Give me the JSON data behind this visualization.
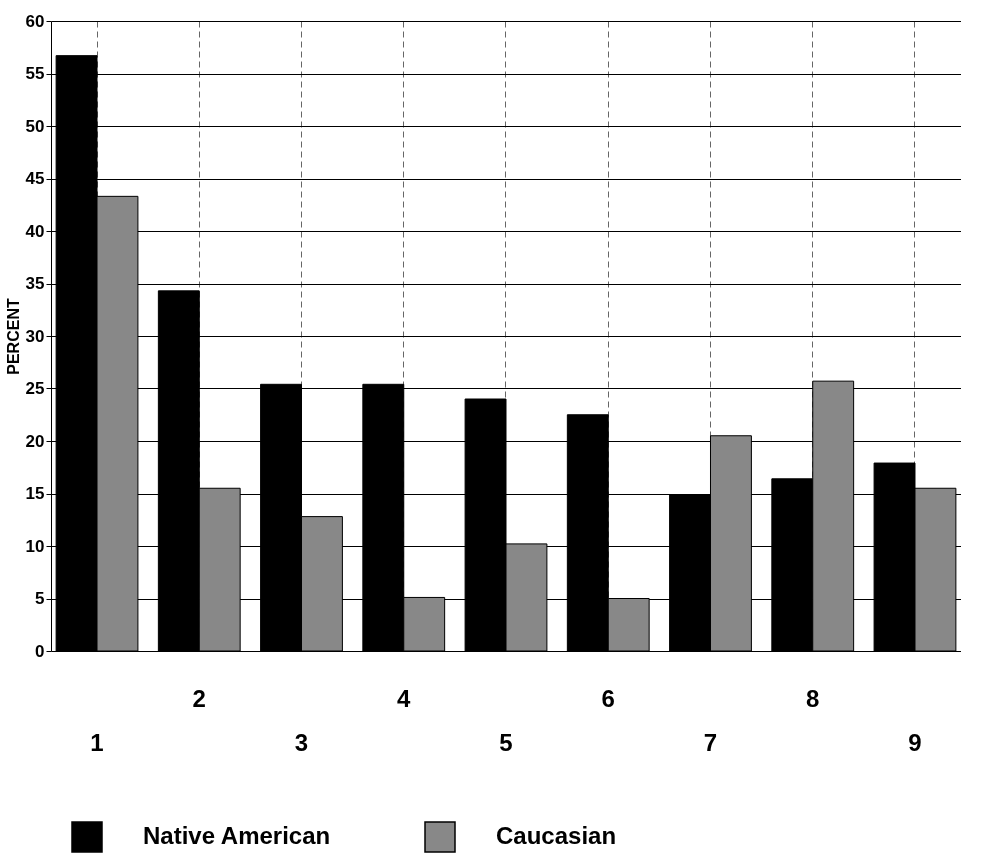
{
  "chart_data": {
    "type": "bar",
    "ylabel": "PERCENT",
    "categories": [
      "1",
      "2",
      "3",
      "4",
      "5",
      "6",
      "7",
      "8",
      "9"
    ],
    "series": [
      {
        "name": "Native American",
        "color": "#000000",
        "values": [
          56.7,
          34.3,
          25.4,
          25.4,
          24.0,
          22.5,
          14.9,
          16.4,
          17.9
        ]
      },
      {
        "name": "Caucasian",
        "color": "#888888",
        "values": [
          43.3,
          15.5,
          12.8,
          5.1,
          10.2,
          5.0,
          20.5,
          25.7,
          15.5
        ]
      }
    ],
    "ylim": [
      0,
      60
    ],
    "yticks": [
      0,
      5,
      10,
      15,
      20,
      25,
      30,
      35,
      40,
      45,
      50,
      55,
      60
    ],
    "grid": true,
    "legend": "bottom left"
  }
}
